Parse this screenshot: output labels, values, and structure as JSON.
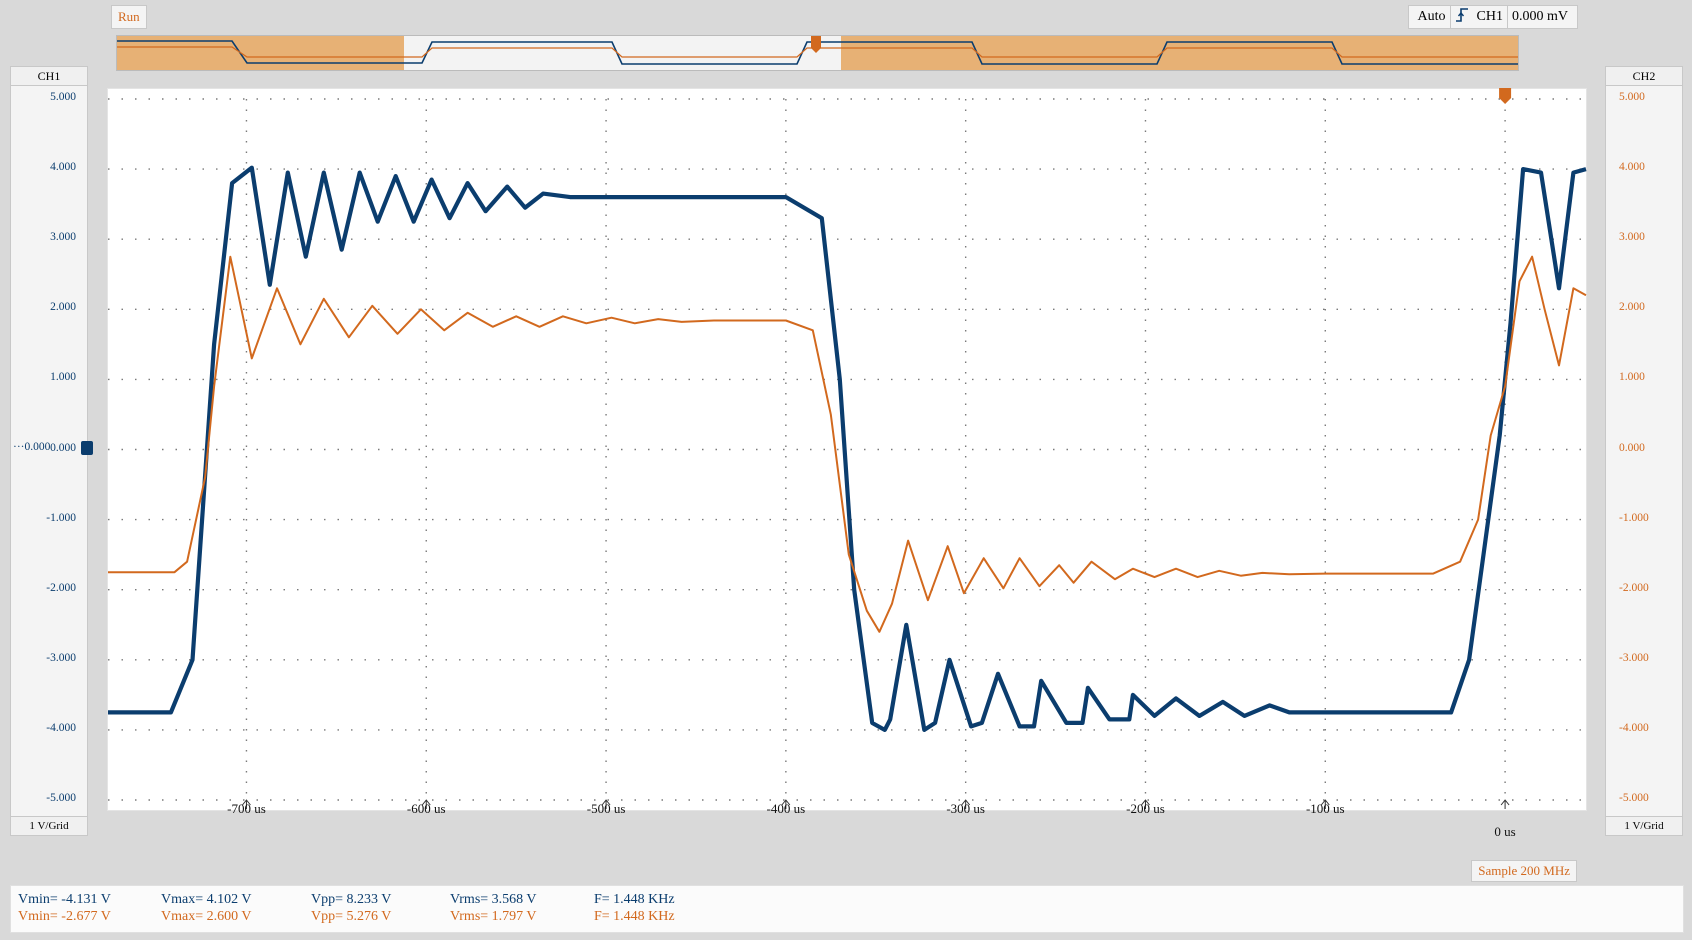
{
  "toolbar": {
    "run_label": "Run",
    "trigger_mode": "Auto",
    "trigger_source": "CH1",
    "trigger_level": "0.000 mV"
  },
  "ch1": {
    "title": "CH1",
    "scale": "1 V/Grid",
    "color": "#0b3d6e",
    "ground_marker": "0.000"
  },
  "ch2": {
    "title": "CH2",
    "scale": "1 V/Grid",
    "color": "#d2691e"
  },
  "acquisition": {
    "sample": "Sample 200 MHz"
  },
  "measurements": {
    "ch1": {
      "vmin": "Vmin= -4.131 V",
      "vmax": "Vmax= 4.102 V",
      "vpp": "Vpp= 8.233 V",
      "vrms": "Vrms= 3.568 V",
      "freq": "F= 1.448 KHz"
    },
    "ch2": {
      "vmin": "Vmin= -2.677 V",
      "vmax": "Vmax= 2.600 V",
      "vpp": "Vpp= 5.276 V",
      "vrms": "Vrms= 1.797 V",
      "freq": "F= 1.448 KHz"
    }
  },
  "chart_data": {
    "type": "line",
    "title": "",
    "xlabel": "",
    "ylabel": "",
    "x_unit": "us",
    "xlim": [
      -777,
      45
    ],
    "ylim": [
      -5,
      5
    ],
    "grid": true,
    "x_ticks": [
      -700,
      -600,
      -500,
      -400,
      -300,
      -200,
      -100,
      0
    ],
    "x_tick_labels": [
      "-700 us",
      "-600 us",
      "-500 us",
      "-400 us",
      "-300 us",
      "-200 us",
      "-100 us",
      "0 us"
    ],
    "y_ticks": [
      5,
      4,
      3,
      2,
      1,
      0,
      -1,
      -2,
      -3,
      -4,
      -5
    ],
    "y_tick_labels": [
      "5.000",
      "4.000",
      "3.000",
      "2.000",
      "1.000",
      "0.000",
      "-1.000",
      "-2.000",
      "-3.000",
      "-4.000",
      "-5.000"
    ],
    "series": [
      {
        "name": "CH1",
        "color": "#0b3d6e",
        "x": [
          -777,
          -742,
          -730,
          -718,
          -708,
          -697,
          -687,
          -677,
          -667,
          -657,
          -647,
          -637,
          -627,
          -617,
          -607,
          -597,
          -587,
          -577,
          -567,
          -555,
          -545,
          -535,
          -520,
          -400,
          -380,
          -370,
          -362,
          -352,
          -345,
          -342,
          -333,
          -323,
          -317,
          -309,
          -297,
          -291,
          -282,
          -270,
          -262,
          -258,
          -244,
          -235,
          -232,
          -220,
          -209,
          -207,
          -195,
          -183,
          -170,
          -157,
          -145,
          -131,
          -120,
          -30,
          -20,
          -12,
          -3,
          3,
          10,
          20,
          30,
          38,
          45
        ],
        "y": [
          -3.75,
          -3.75,
          -3.0,
          1.5,
          3.8,
          4.02,
          2.35,
          3.95,
          2.75,
          3.95,
          2.85,
          3.95,
          3.25,
          3.9,
          3.25,
          3.85,
          3.3,
          3.8,
          3.4,
          3.75,
          3.45,
          3.65,
          3.6,
          3.6,
          3.3,
          1.0,
          -2.0,
          -3.9,
          -4.0,
          -3.85,
          -2.5,
          -4.0,
          -3.9,
          -3.0,
          -3.95,
          -3.9,
          -3.2,
          -3.95,
          -3.95,
          -3.3,
          -3.9,
          -3.9,
          -3.4,
          -3.85,
          -3.85,
          -3.5,
          -3.8,
          -3.55,
          -3.8,
          -3.6,
          -3.8,
          -3.65,
          -3.75,
          -3.75,
          -3.0,
          -1.5,
          0.2,
          1.8,
          4.0,
          3.95,
          2.3,
          3.95,
          4.0
        ]
      },
      {
        "name": "CH2",
        "color": "#d2691e",
        "x": [
          -777,
          -740,
          -733,
          -723,
          -718,
          -709,
          -697,
          -683,
          -670,
          -657,
          -643,
          -630,
          -616,
          -603,
          -590,
          -577,
          -563,
          -550,
          -537,
          -524,
          -511,
          -497,
          -484,
          -471,
          -458,
          -440,
          -400,
          -385,
          -375,
          -365,
          -355,
          -348,
          -341,
          -332,
          -321,
          -310,
          -301,
          -290,
          -279,
          -270,
          -259,
          -248,
          -240,
          -230,
          -217,
          -207,
          -195,
          -183,
          -171,
          -159,
          -147,
          -135,
          -120,
          -100,
          -40,
          -25,
          -15,
          -8,
          0,
          8,
          15,
          22,
          30,
          38,
          45
        ],
        "y": [
          -1.75,
          -1.75,
          -1.6,
          -0.4,
          0.9,
          2.75,
          1.3,
          2.3,
          1.5,
          2.15,
          1.6,
          2.05,
          1.65,
          2.0,
          1.7,
          1.95,
          1.75,
          1.9,
          1.75,
          1.9,
          1.8,
          1.88,
          1.8,
          1.86,
          1.82,
          1.84,
          1.84,
          1.7,
          0.5,
          -1.5,
          -2.3,
          -2.6,
          -2.2,
          -1.3,
          -2.15,
          -1.38,
          -2.05,
          -1.55,
          -1.98,
          -1.55,
          -1.95,
          -1.65,
          -1.9,
          -1.6,
          -1.85,
          -1.7,
          -1.82,
          -1.7,
          -1.82,
          -1.73,
          -1.8,
          -1.76,
          -1.78,
          -1.77,
          -1.77,
          -1.6,
          -1.0,
          0.2,
          0.9,
          2.4,
          2.75,
          2.0,
          1.2,
          2.3,
          2.2
        ]
      }
    ],
    "trigger_marker_x": 0,
    "ground_level": 0
  }
}
